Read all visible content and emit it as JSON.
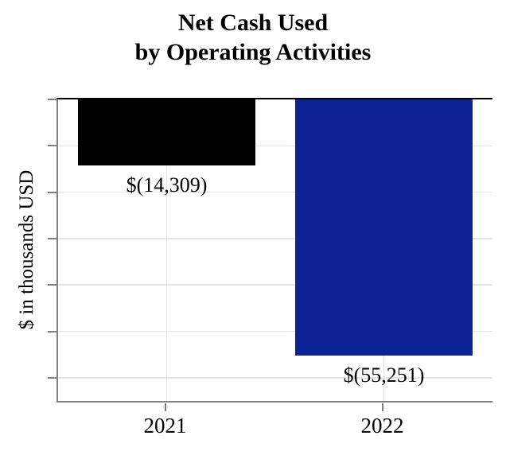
{
  "title": {
    "line1": "Net Cash Used",
    "line2": "by Operating Activities"
  },
  "chart_data": {
    "type": "bar",
    "title": "Net Cash Used by Operating Activities",
    "categories": [
      "2021",
      "2022"
    ],
    "values": [
      -14309,
      -55251
    ],
    "data_labels": [
      "$(14,309)",
      "$(55,251)"
    ],
    "bar_colors": [
      "#000000",
      "#0d2394"
    ],
    "xlabel": "",
    "ylabel": "$ in thousands USD",
    "ylim": [
      -65000,
      0
    ],
    "ytick_interval": 10000,
    "ytick_labels_visible": false,
    "grid": true,
    "legend": false,
    "orientation": "vertical",
    "baseline": 0
  },
  "style": {
    "background": "#ffffff",
    "axis_color": "#808080",
    "grid_color": "#e4e4e4",
    "zero_line_color": "#000000",
    "text_color": "#000000"
  }
}
